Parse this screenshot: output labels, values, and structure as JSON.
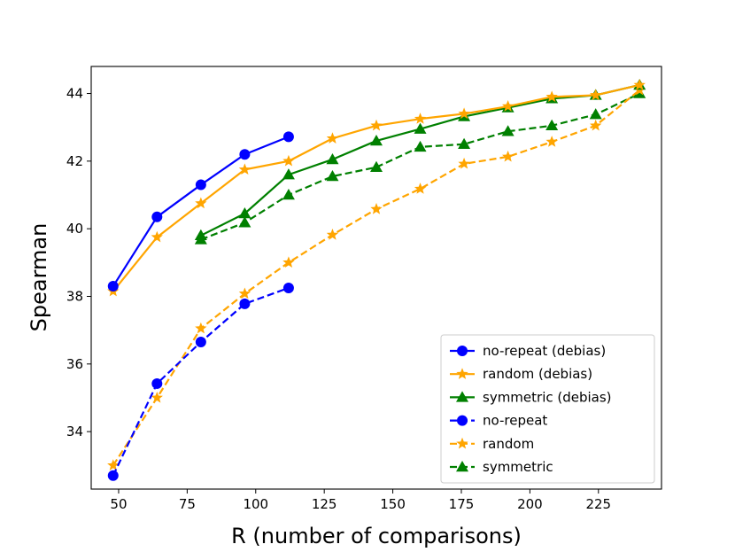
{
  "chart_data": {
    "type": "line",
    "title": "",
    "xlabel": "R (number of comparisons)",
    "ylabel": "Spearman",
    "xlim": [
      40,
      248
    ],
    "ylim": [
      32.3,
      44.8
    ],
    "xticks": [
      50,
      75,
      100,
      125,
      150,
      175,
      200,
      225
    ],
    "yticks": [
      34,
      36,
      38,
      40,
      42,
      44
    ],
    "legend_position": "bottom-right",
    "grid": false,
    "series": [
      {
        "name": "no-repeat (debias)",
        "color": "#0000ff",
        "linestyle": "solid",
        "marker": "circle",
        "x": [
          48,
          64,
          80,
          96,
          112
        ],
        "y": [
          38.3,
          40.35,
          41.3,
          42.2,
          42.72
        ]
      },
      {
        "name": "random (debias)",
        "color": "#ffa500",
        "linestyle": "solid",
        "marker": "star",
        "x": [
          48,
          64,
          80,
          96,
          112,
          128,
          144,
          160,
          176,
          192,
          208,
          224,
          240
        ],
        "y": [
          38.15,
          39.75,
          40.75,
          41.75,
          42.0,
          42.67,
          43.05,
          43.25,
          43.4,
          43.62,
          43.9,
          43.95,
          44.25
        ]
      },
      {
        "name": "symmetric (debias)",
        "color": "#008000",
        "linestyle": "solid",
        "marker": "triangle",
        "x": [
          80,
          96,
          112,
          128,
          144,
          160,
          176,
          192,
          208,
          224,
          240
        ],
        "y": [
          39.8,
          40.45,
          41.6,
          42.05,
          42.6,
          42.95,
          43.32,
          43.58,
          43.85,
          43.95,
          44.25
        ]
      },
      {
        "name": "no-repeat",
        "color": "#0000ff",
        "linestyle": "dashed",
        "marker": "circle",
        "x": [
          48,
          64,
          80,
          96,
          112
        ],
        "y": [
          32.7,
          35.42,
          36.65,
          37.78,
          38.25
        ]
      },
      {
        "name": "random",
        "color": "#ffa500",
        "linestyle": "dashed",
        "marker": "star",
        "x": [
          48,
          64,
          80,
          96,
          112,
          128,
          144,
          160,
          176,
          192,
          208,
          224,
          240
        ],
        "y": [
          33.0,
          35.0,
          37.05,
          38.08,
          39.0,
          39.82,
          40.58,
          41.18,
          41.92,
          42.13,
          42.57,
          43.05,
          44.1
        ]
      },
      {
        "name": "symmetric",
        "color": "#008000",
        "linestyle": "dashed",
        "marker": "triangle",
        "x": [
          80,
          96,
          112,
          128,
          144,
          160,
          176,
          192,
          208,
          224,
          240
        ],
        "y": [
          39.68,
          40.18,
          41.0,
          41.55,
          41.82,
          42.42,
          42.5,
          42.88,
          43.05,
          43.38,
          44.0
        ]
      }
    ]
  }
}
